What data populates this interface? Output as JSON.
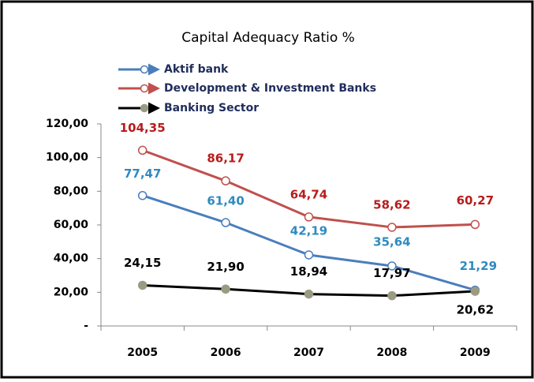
{
  "chart_data": {
    "type": "line",
    "title": "Capital Adequacy Ratio %",
    "categories": [
      "2005",
      "2006",
      "2007",
      "2008",
      "2009"
    ],
    "series": [
      {
        "name": "Aktif bank",
        "color": "#4a7ebb",
        "label_color": "#2e8bc0",
        "marker": "open",
        "values": [
          77.47,
          61.4,
          42.19,
          35.64,
          21.29
        ],
        "value_labels": [
          "77,47",
          "61,40",
          "42,19",
          "35,64",
          "21,29"
        ]
      },
      {
        "name": "Development & Investment Banks",
        "color": "#c0504d",
        "label_color": "#b81c1c",
        "marker": "open",
        "values": [
          104.35,
          86.17,
          64.74,
          58.62,
          60.27
        ],
        "value_labels": [
          "104,35",
          "86,17",
          "64,74",
          "58,62",
          "60,27"
        ]
      },
      {
        "name": "Banking Sector",
        "color": "#000000",
        "label_color": "#000000",
        "marker": "#9b9b83",
        "values": [
          24.15,
          21.9,
          18.94,
          17.97,
          20.62
        ],
        "value_labels": [
          "24,15",
          "21,90",
          "18,94",
          "17,97",
          "20,62"
        ]
      }
    ],
    "ylim": [
      0,
      120
    ],
    "yticks": [
      {
        "value": 0,
        "label": "-"
      },
      {
        "value": 20,
        "label": "20,00"
      },
      {
        "value": 40,
        "label": "40,00"
      },
      {
        "value": 60,
        "label": "60,00"
      },
      {
        "value": 80,
        "label": "80,00"
      },
      {
        "value": 100,
        "label": "100,00"
      },
      {
        "value": 120,
        "label": "120,00"
      }
    ],
    "grid": false,
    "legend": "top-left"
  }
}
